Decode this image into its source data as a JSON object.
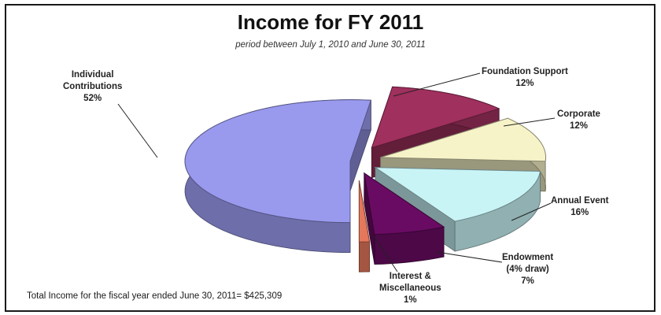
{
  "chart_data": {
    "type": "pie",
    "title": "Income for FY 2011",
    "subtitle": "period between July 1, 2010 and June 30, 2011",
    "note": "Total Income for the fiscal year ended June 30, 2011= $425,309",
    "slices": [
      {
        "label_lines": [
          "Individual",
          "Contributions"
        ],
        "pct_label": "52%",
        "value": 52,
        "color": "#9999ee"
      },
      {
        "label_lines": [
          "Foundation Support"
        ],
        "pct_label": "12%",
        "value": 12,
        "color": "#a0305e"
      },
      {
        "label_lines": [
          "Corporate"
        ],
        "pct_label": "12%",
        "value": 12,
        "color": "#f7f3c8"
      },
      {
        "label_lines": [
          "Annual Event"
        ],
        "pct_label": "16%",
        "value": 16,
        "color": "#c8f4f6"
      },
      {
        "label_lines": [
          "Endowment",
          "(4% draw)"
        ],
        "pct_label": "7%",
        "value": 7,
        "color": "#6a0b63"
      },
      {
        "label_lines": [
          "Interest &",
          "Miscellaneous"
        ],
        "pct_label": "1%",
        "value": 1,
        "color": "#e5775b"
      }
    ],
    "legend": "none"
  }
}
